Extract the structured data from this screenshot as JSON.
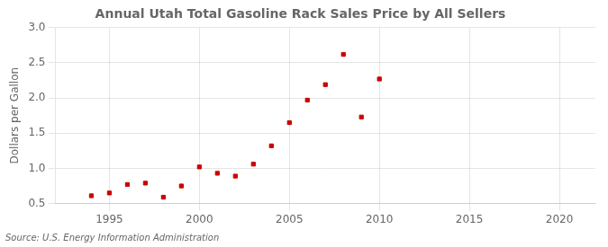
{
  "chart_data": {
    "type": "scatter",
    "title": "Annual Utah Total Gasoline Rack Sales Price by All Sellers",
    "ylabel": "Dollars per Gallon",
    "annotations": [
      "Source: U.S. Energy Information Administration"
    ],
    "x": [
      1994,
      1995,
      1996,
      1997,
      1998,
      1999,
      2000,
      2001,
      2002,
      2003,
      2004,
      2005,
      2006,
      2007,
      2008,
      2009,
      2010
    ],
    "values": [
      0.61,
      0.65,
      0.77,
      0.79,
      0.59,
      0.75,
      1.02,
      0.93,
      0.89,
      1.06,
      1.32,
      1.65,
      1.97,
      2.19,
      2.62,
      1.73,
      2.27
    ],
    "color": "#cc0000",
    "marker": "square",
    "xlim": [
      1992,
      2022
    ],
    "ylim": [
      0.5,
      3.0
    ],
    "xticks": [
      1995,
      2000,
      2005,
      2010,
      2015,
      2020
    ],
    "yticks": [
      0.5,
      {
        "value": 1.0,
        "label": "1.0"
      },
      1.5,
      {
        "value": 2.0,
        "label": "2.0"
      },
      2.5,
      {
        "value": 3.0,
        "label": "3.0"
      }
    ],
    "grid": true
  }
}
